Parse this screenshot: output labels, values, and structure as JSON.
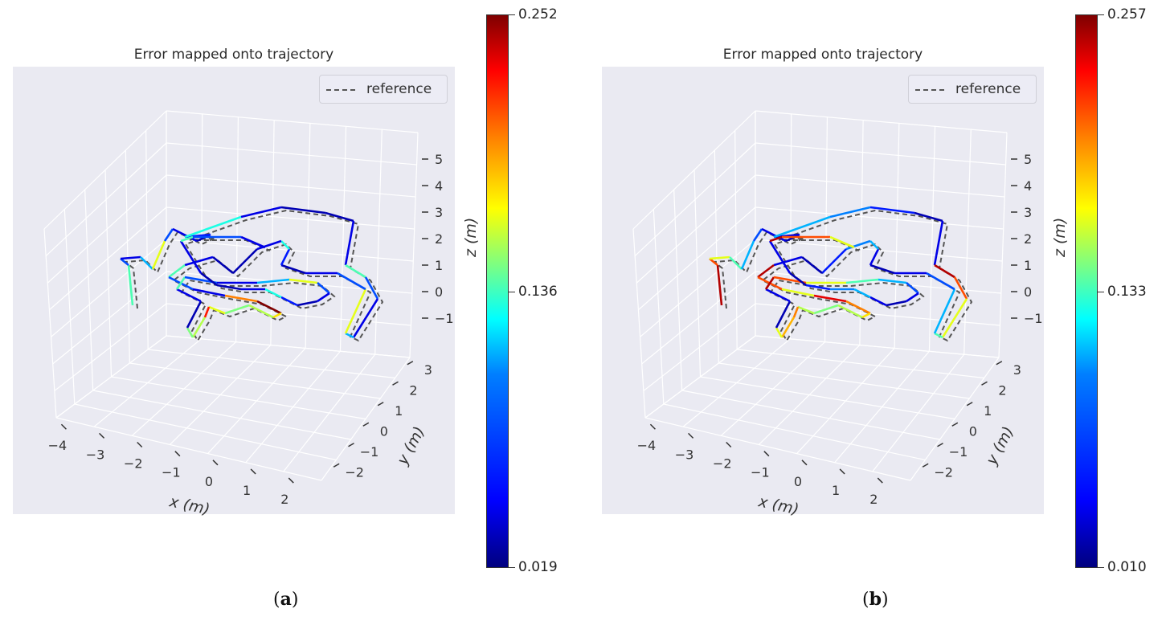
{
  "figure": {
    "panels": [
      {
        "id": "a",
        "caption_letter": "a",
        "colorbar": {
          "max_label": "0.252",
          "mid_label": "0.136",
          "min_label": "0.019"
        }
      },
      {
        "id": "b",
        "caption_letter": "b",
        "colorbar": {
          "max_label": "0.257",
          "mid_label": "0.133",
          "min_label": "0.010"
        }
      }
    ]
  },
  "chart_data": [
    {
      "type": "line",
      "projection": "3d",
      "title": "Error mapped onto trajectory",
      "legend": {
        "position": "top-right",
        "entries": [
          "reference"
        ]
      },
      "xlabel": "x (m)",
      "ylabel": "y (m)",
      "zlabel": "z (m)",
      "x_ticks": [
        "−4",
        "−3",
        "−2",
        "−1",
        "0",
        "1",
        "2"
      ],
      "y_ticks": [
        "−2",
        "−1",
        "0",
        "1",
        "2",
        "3"
      ],
      "z_ticks": [
        "−1",
        "0",
        "1",
        "2",
        "3",
        "4",
        "5"
      ],
      "xlim": [
        -4,
        2.5
      ],
      "ylim": [
        -2.5,
        3.5
      ],
      "zlim": [
        -1.5,
        5
      ],
      "grid": true,
      "colormap": "jet",
      "color_range": [
        0.019,
        0.252
      ],
      "colorbar_ticks": [
        "0.019",
        "0.136",
        "0.252"
      ],
      "series": [
        {
          "name": "reference",
          "style": "dashed",
          "color": "#555555"
        },
        {
          "style": "solid",
          "colored_by": "error"
        }
      ]
    },
    {
      "type": "line",
      "projection": "3d",
      "title": "Error mapped onto trajectory",
      "legend": {
        "position": "top-right",
        "entries": [
          "reference"
        ]
      },
      "xlabel": "x (m)",
      "ylabel": "y (m)",
      "zlabel": "z (m)",
      "x_ticks": [
        "−4",
        "−3",
        "−2",
        "−1",
        "0",
        "1",
        "2"
      ],
      "y_ticks": [
        "−2",
        "−1",
        "0",
        "1",
        "2",
        "3"
      ],
      "z_ticks": [
        "−1",
        "0",
        "1",
        "2",
        "3",
        "4",
        "5"
      ],
      "xlim": [
        -4,
        2.5
      ],
      "ylim": [
        -2.5,
        3.5
      ],
      "zlim": [
        -1.5,
        5
      ],
      "grid": true,
      "colormap": "jet",
      "color_range": [
        0.01,
        0.257
      ],
      "colorbar_ticks": [
        "0.010",
        "0.133",
        "0.257"
      ],
      "series": [
        {
          "name": "reference",
          "style": "dashed",
          "color": "#555555"
        },
        {
          "style": "solid",
          "colored_by": "error"
        }
      ]
    }
  ]
}
